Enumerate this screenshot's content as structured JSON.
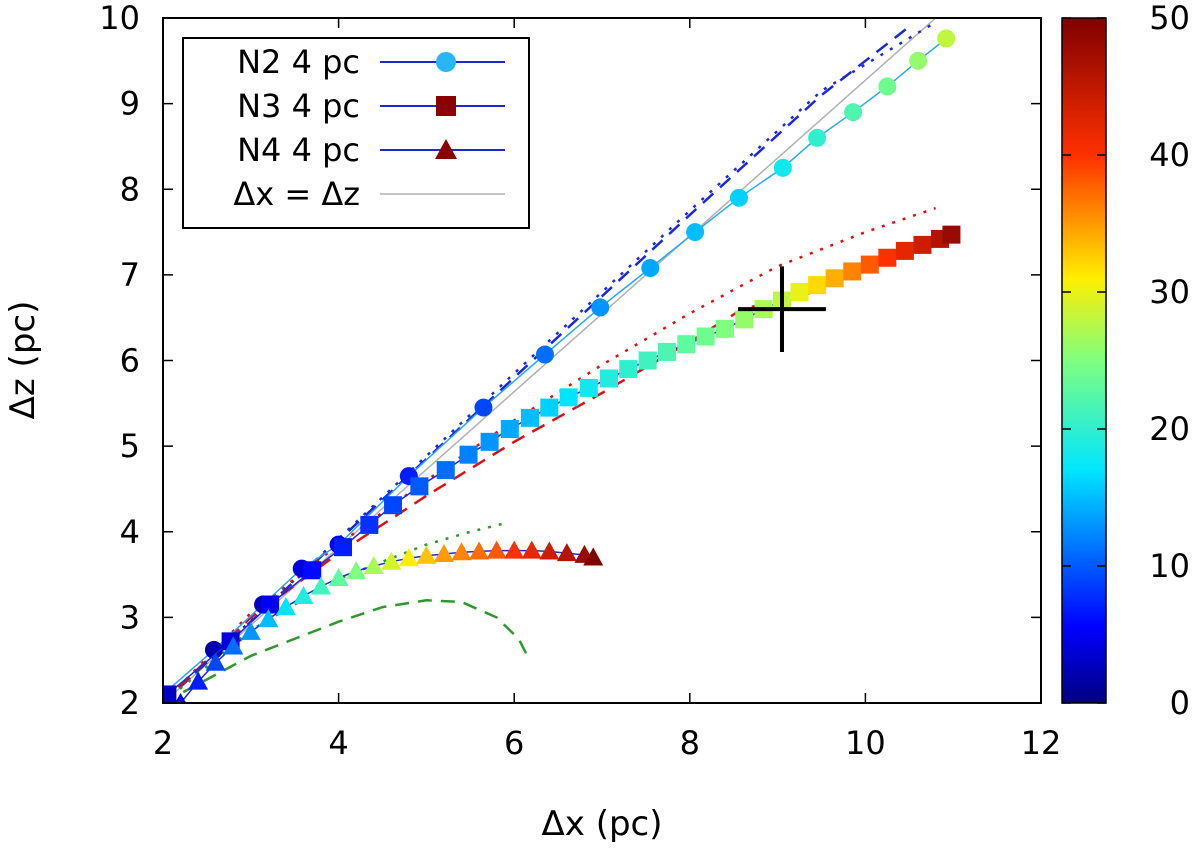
{
  "chart_data": {
    "type": "scatter",
    "xlabel": "Δx (pc)",
    "ylabel": "Δz (pc)",
    "xlim": [
      2,
      12
    ],
    "ylim": [
      2,
      10
    ],
    "xticks": [
      "2",
      "4",
      "6",
      "8",
      "10",
      "12"
    ],
    "yticks": [
      "2",
      "3",
      "4",
      "5",
      "6",
      "7",
      "8",
      "9",
      "10"
    ],
    "colorbar": {
      "range": [
        0,
        50
      ],
      "ticks": [
        "0",
        "10",
        "20",
        "30",
        "40",
        "50"
      ]
    },
    "legend": {
      "position": "top-left",
      "entries": [
        {
          "label": "N2 4 pc",
          "marker": "circle",
          "line_color": "#1a2bd6",
          "marker_color": "#29b6f6"
        },
        {
          "label": "N3 4 pc",
          "marker": "square",
          "line_color": "#1a2bd6",
          "marker_color": "#8b0000"
        },
        {
          "label": "N4 4 pc",
          "marker": "triangle",
          "line_color": "#1a2bd6",
          "marker_color": "#8b0000"
        },
        {
          "label": "Δx = Δz",
          "marker": "none",
          "line_color": "#b0b0b0"
        }
      ]
    },
    "series": [
      {
        "name": "N2 4 pc",
        "marker": "circle",
        "x": [
          2.0,
          2.58,
          3.14,
          3.58,
          4.0,
          4.8,
          5.65,
          6.35,
          6.98,
          7.55,
          8.06,
          8.56,
          9.06,
          9.45,
          9.86,
          10.25,
          10.6,
          10.92
        ],
        "y": [
          2.1,
          2.62,
          3.15,
          3.57,
          3.85,
          4.65,
          5.45,
          6.07,
          6.62,
          7.08,
          7.5,
          7.9,
          8.25,
          8.6,
          8.9,
          9.2,
          9.5,
          9.76
        ],
        "c": [
          1,
          2,
          3,
          4,
          5,
          7,
          9,
          11,
          13,
          14,
          15,
          16,
          18,
          20,
          22,
          24,
          26,
          28
        ]
      },
      {
        "name": "N3 4 pc",
        "marker": "square",
        "x": [
          2.05,
          2.77,
          3.22,
          3.7,
          4.05,
          4.35,
          4.62,
          4.92,
          5.22,
          5.48,
          5.72,
          5.95,
          6.18,
          6.4,
          6.62,
          6.85,
          7.08,
          7.3,
          7.52,
          7.74,
          7.96,
          8.18,
          8.4,
          8.62,
          8.84,
          9.05,
          9.25,
          9.45,
          9.65,
          9.85,
          10.05,
          10.25,
          10.45,
          10.65,
          10.85,
          10.98
        ],
        "y": [
          2.1,
          2.72,
          3.15,
          3.55,
          3.82,
          4.08,
          4.31,
          4.53,
          4.72,
          4.9,
          5.05,
          5.2,
          5.33,
          5.45,
          5.57,
          5.68,
          5.79,
          5.9,
          6.0,
          6.1,
          6.19,
          6.28,
          6.37,
          6.48,
          6.6,
          6.7,
          6.8,
          6.88,
          6.96,
          7.04,
          7.12,
          7.2,
          7.28,
          7.35,
          7.42,
          7.47
        ],
        "c": [
          3,
          4,
          5,
          6,
          7,
          8,
          9,
          10,
          11,
          12,
          13,
          14,
          15,
          16,
          17,
          18,
          19,
          20,
          21,
          22,
          23,
          24,
          25,
          26,
          27,
          28,
          30,
          32,
          34,
          36,
          38,
          40,
          42,
          44,
          46,
          48
        ]
      },
      {
        "name": "N4 4 pc",
        "marker": "triangle",
        "x": [
          2.2,
          2.4,
          2.6,
          2.8,
          3.0,
          3.2,
          3.4,
          3.6,
          3.8,
          4.0,
          4.2,
          4.4,
          4.6,
          4.8,
          5.0,
          5.2,
          5.4,
          5.6,
          5.8,
          6.0,
          6.2,
          6.4,
          6.6,
          6.8,
          6.9
        ],
        "y": [
          2.0,
          2.25,
          2.47,
          2.66,
          2.83,
          2.98,
          3.12,
          3.25,
          3.36,
          3.46,
          3.54,
          3.6,
          3.65,
          3.69,
          3.72,
          3.74,
          3.76,
          3.77,
          3.78,
          3.78,
          3.78,
          3.77,
          3.75,
          3.73,
          3.7
        ],
        "c": [
          5,
          7,
          9,
          11,
          13,
          15,
          17,
          19,
          21,
          23,
          25,
          27,
          29,
          31,
          33,
          35,
          36,
          37,
          38,
          40,
          42,
          44,
          46,
          48,
          50
        ]
      }
    ],
    "reference_lines": [
      {
        "name": "Δx = Δz",
        "style": "solid",
        "color": "#b0b0b0",
        "x": [
          2,
          10.8
        ],
        "y": [
          2,
          10
        ]
      },
      {
        "name": "N2 dashed",
        "style": "dashed",
        "color": "#1a2bd6",
        "x": [
          2,
          4,
          6,
          8,
          9.5,
          10.5
        ],
        "y": [
          2,
          3.9,
          5.8,
          7.7,
          9.1,
          9.9
        ]
      },
      {
        "name": "N2 dotted",
        "style": "dotted",
        "color": "#1a2bd6",
        "x": [
          2,
          4,
          6,
          8,
          9.5,
          10.8
        ],
        "y": [
          2,
          3.92,
          5.85,
          7.75,
          9.15,
          9.95
        ]
      },
      {
        "name": "N3 dashed",
        "style": "dashed",
        "color": "#e01010",
        "x": [
          2,
          3,
          4,
          5,
          6,
          7,
          8,
          8.6,
          9.5
        ],
        "y": [
          2,
          3.0,
          3.75,
          4.42,
          5.05,
          5.62,
          6.22,
          6.6,
          6.82
        ]
      },
      {
        "name": "N3 dotted",
        "style": "dotted",
        "color": "#e01010",
        "x": [
          2,
          3,
          4,
          5,
          6,
          7,
          8,
          9,
          10,
          10.8
        ],
        "y": [
          2,
          3.05,
          3.85,
          4.6,
          5.3,
          5.95,
          6.55,
          7.1,
          7.5,
          7.78
        ]
      },
      {
        "name": "N4 dashed",
        "style": "dashed",
        "color": "#2e9a2e",
        "x": [
          2,
          3,
          4,
          4.5,
          5,
          5.4,
          5.8,
          6.05,
          6.15
        ],
        "y": [
          2,
          2.55,
          2.95,
          3.12,
          3.2,
          3.18,
          3.0,
          2.75,
          2.55
        ]
      },
      {
        "name": "N4 dotted",
        "style": "dotted",
        "color": "#2e9a2e",
        "x": [
          2,
          3,
          4,
          5,
          5.5,
          5.9
        ],
        "y": [
          2,
          2.85,
          3.45,
          3.85,
          4.0,
          4.1
        ]
      }
    ],
    "observed_point": {
      "x": 9.05,
      "y": 6.6,
      "xerr": 0.5,
      "yerr": 0.5
    }
  }
}
